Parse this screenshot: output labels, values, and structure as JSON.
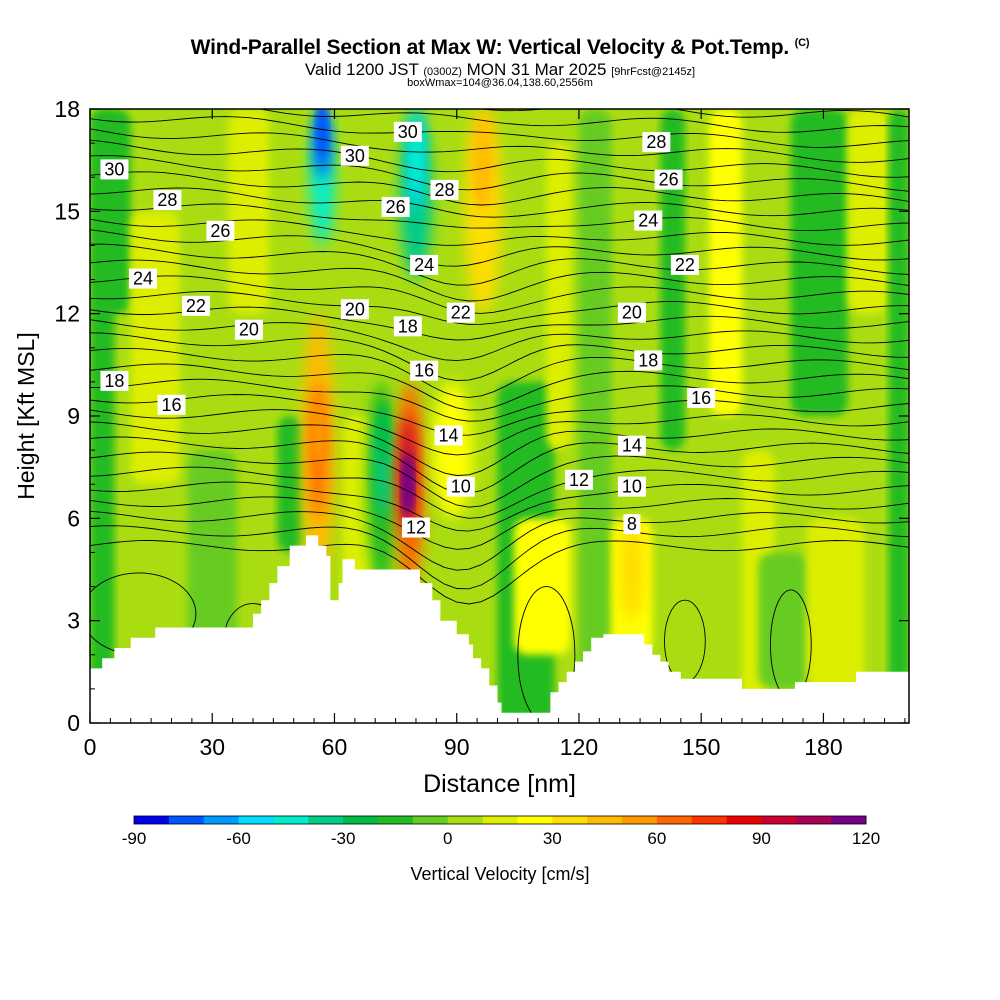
{
  "header": {
    "title": "Wind-Parallel Section at Max W: Vertical Velocity & Pot.Temp.",
    "copyright": "(C)",
    "valid_prefix": "Valid 1200 JST",
    "valid_zulu": "(0300Z)",
    "valid_date": "MON 31 Mar 2025",
    "forecast": "[9hrFcst@2145z]",
    "box_info": "boxWmax=104@36.04,138.60,2556m"
  },
  "colorbar": {
    "title": "Vertical Velocity [cm/s]",
    "tick_labels": [
      "-90",
      "-60",
      "-30",
      "0",
      "30",
      "60",
      "90",
      "120"
    ],
    "colors": [
      "#0000ee",
      "#0055ff",
      "#0099ff",
      "#00ddff",
      "#00eecc",
      "#00cc88",
      "#00bb44",
      "#22bb22",
      "#66cc22",
      "#aadd11",
      "#ddee00",
      "#ffff00",
      "#ffdd00",
      "#ffbb00",
      "#ff9900",
      "#ff6600",
      "#ff3300",
      "#ee0000",
      "#cc0033",
      "#aa0055",
      "#770088"
    ]
  },
  "chart_data": {
    "type": "heatmap",
    "title": "Wind-Parallel Section at Max W: Vertical Velocity & Pot.Temp.",
    "xlabel": "Distance [nm]",
    "ylabel": "Height [Kft MSL]",
    "x_ticks": [
      0,
      30,
      60,
      90,
      120,
      150,
      180
    ],
    "y_ticks": [
      0,
      3,
      6,
      9,
      12,
      15,
      18
    ],
    "xlim": [
      0,
      201
    ],
    "ylim": [
      0,
      18
    ],
    "colorbar_range": [
      -90,
      120
    ],
    "colorbar_step": 10,
    "terrain_profile": [
      [
        0,
        1.6
      ],
      [
        3,
        1.6
      ],
      [
        3,
        1.9
      ],
      [
        6,
        1.9
      ],
      [
        6,
        2.2
      ],
      [
        10,
        2.2
      ],
      [
        10,
        2.5
      ],
      [
        16,
        2.5
      ],
      [
        16,
        2.8
      ],
      [
        26,
        2.8
      ],
      [
        40,
        2.8
      ],
      [
        40,
        3.2
      ],
      [
        42,
        3.2
      ],
      [
        42,
        3.6
      ],
      [
        44,
        3.6
      ],
      [
        44,
        4.1
      ],
      [
        46,
        4.1
      ],
      [
        46,
        4.6
      ],
      [
        49,
        4.6
      ],
      [
        49,
        5.2
      ],
      [
        53,
        5.2
      ],
      [
        53,
        5.5
      ],
      [
        56,
        5.5
      ],
      [
        56,
        5.2
      ],
      [
        58,
        5.2
      ],
      [
        58,
        4.9
      ],
      [
        59,
        4.9
      ],
      [
        59,
        3.6
      ],
      [
        61,
        3.6
      ],
      [
        61,
        4.1
      ],
      [
        62,
        4.1
      ],
      [
        62,
        4.8
      ],
      [
        65,
        4.8
      ],
      [
        65,
        4.5
      ],
      [
        70,
        4.5
      ],
      [
        70,
        4.5
      ],
      [
        76,
        4.5
      ],
      [
        76,
        4.5
      ],
      [
        81,
        4.5
      ],
      [
        81,
        4.1
      ],
      [
        84,
        4.1
      ],
      [
        84,
        3.6
      ],
      [
        86,
        3.6
      ],
      [
        86,
        3.0
      ],
      [
        90,
        3.0
      ],
      [
        90,
        2.6
      ],
      [
        93,
        2.6
      ],
      [
        93,
        2.3
      ],
      [
        94,
        2.3
      ],
      [
        94,
        1.9
      ],
      [
        96,
        1.9
      ],
      [
        96,
        1.6
      ],
      [
        98,
        1.6
      ],
      [
        98,
        1.1
      ],
      [
        100,
        1.1
      ],
      [
        100,
        0.6
      ],
      [
        101,
        0.6
      ],
      [
        101,
        0.3
      ],
      [
        113,
        0.3
      ],
      [
        113,
        0.9
      ],
      [
        115,
        0.9
      ],
      [
        115,
        1.2
      ],
      [
        117,
        1.2
      ],
      [
        117,
        1.5
      ],
      [
        119,
        1.5
      ],
      [
        119,
        1.8
      ],
      [
        121,
        1.8
      ],
      [
        121,
        2.1
      ],
      [
        123,
        2.1
      ],
      [
        123,
        2.5
      ],
      [
        126,
        2.5
      ],
      [
        126,
        2.6
      ],
      [
        136,
        2.6
      ],
      [
        136,
        2.3
      ],
      [
        138,
        2.3
      ],
      [
        138,
        2.0
      ],
      [
        140,
        2.0
      ],
      [
        140,
        1.8
      ],
      [
        142,
        1.8
      ],
      [
        142,
        1.5
      ],
      [
        145,
        1.5
      ],
      [
        145,
        1.3
      ],
      [
        160,
        1.3
      ],
      [
        160,
        1.0
      ],
      [
        173,
        1.0
      ],
      [
        173,
        1.2
      ],
      [
        188,
        1.2
      ],
      [
        188,
        1.5
      ],
      [
        201,
        1.5
      ]
    ],
    "updraft_cores": [
      {
        "x": 78,
        "y": 7.0,
        "w": 120
      },
      {
        "x": 56,
        "y": 8.5,
        "w": 50
      },
      {
        "x": 96,
        "y": 16.0,
        "w": 40
      }
    ],
    "downdraft_cores": [
      {
        "x": 57,
        "y": 17.5,
        "w": -80
      },
      {
        "x": 80,
        "y": 16.5,
        "w": -50
      },
      {
        "x": 72,
        "y": 8.5,
        "w": -30
      }
    ],
    "contour_variable": "Potential Temperature",
    "contour_labels": [
      {
        "value": "30",
        "x": 6,
        "y": 16.2
      },
      {
        "value": "28",
        "x": 19,
        "y": 15.3
      },
      {
        "value": "26",
        "x": 32,
        "y": 14.4
      },
      {
        "value": "24",
        "x": 13,
        "y": 13.0
      },
      {
        "value": "22",
        "x": 26,
        "y": 12.2
      },
      {
        "value": "20",
        "x": 39,
        "y": 11.5
      },
      {
        "value": "18",
        "x": 6,
        "y": 10.0
      },
      {
        "value": "16",
        "x": 20,
        "y": 9.3
      },
      {
        "value": "30",
        "x": 65,
        "y": 16.6
      },
      {
        "value": "30",
        "x": 78,
        "y": 17.3
      },
      {
        "value": "28",
        "x": 87,
        "y": 15.6
      },
      {
        "value": "26",
        "x": 75,
        "y": 15.1
      },
      {
        "value": "24",
        "x": 82,
        "y": 13.4
      },
      {
        "value": "20",
        "x": 65,
        "y": 12.1
      },
      {
        "value": "18",
        "x": 78,
        "y": 11.6
      },
      {
        "value": "22",
        "x": 91,
        "y": 12.0
      },
      {
        "value": "16",
        "x": 82,
        "y": 10.3
      },
      {
        "value": "14",
        "x": 88,
        "y": 8.4
      },
      {
        "value": "10",
        "x": 91,
        "y": 6.9
      },
      {
        "value": "12",
        "x": 80,
        "y": 5.7
      },
      {
        "value": "28",
        "x": 139,
        "y": 17.0
      },
      {
        "value": "26",
        "x": 142,
        "y": 15.9
      },
      {
        "value": "24",
        "x": 137,
        "y": 14.7
      },
      {
        "value": "22",
        "x": 146,
        "y": 13.4
      },
      {
        "value": "20",
        "x": 133,
        "y": 12.0
      },
      {
        "value": "18",
        "x": 137,
        "y": 10.6
      },
      {
        "value": "16",
        "x": 150,
        "y": 9.5
      },
      {
        "value": "14",
        "x": 133,
        "y": 8.1
      },
      {
        "value": "12",
        "x": 120,
        "y": 7.1
      },
      {
        "value": "10",
        "x": 133,
        "y": 6.9
      },
      {
        "value": "8",
        "x": 133,
        "y": 5.8
      }
    ]
  }
}
